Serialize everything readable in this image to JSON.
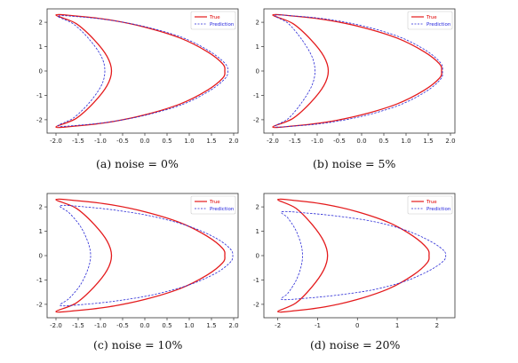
{
  "colors": {
    "true": "#e41a1c",
    "prediction": "#2b2bd6"
  },
  "chart_data": [
    {
      "type": "line",
      "caption": "(a) noise = 0%",
      "xlim": [
        -2.2,
        2.1
      ],
      "ylim": [
        -2.55,
        2.55
      ],
      "xticks": [
        "-2.0",
        "-1.5",
        "-1.0",
        "-0.5",
        "0.0",
        "0.5",
        "1.0",
        "1.5",
        "2.0"
      ],
      "xtick_values": [
        -2.0,
        -1.5,
        -1.0,
        -0.5,
        0.0,
        0.5,
        1.0,
        1.5,
        2.0
      ],
      "yticks": [
        "-2",
        "-1",
        "0",
        "1",
        "2"
      ],
      "ytick_values": [
        -2,
        -1,
        0,
        1,
        2
      ],
      "legend": "top-right",
      "grid": false,
      "series": [
        {
          "name": "True",
          "style": "solid",
          "x": [
            -2.0,
            -1.5,
            -0.8,
            0.0,
            0.8,
            1.4,
            1.75,
            1.8,
            1.75,
            1.4,
            0.8,
            0.0,
            -0.8,
            -1.5,
            -2.0,
            -1.55,
            -1.15,
            -0.85,
            -0.75,
            -0.85,
            -1.15,
            -1.55,
            -2.0
          ],
          "y": [
            2.3,
            2.25,
            2.1,
            1.8,
            1.35,
            0.8,
            0.3,
            0.0,
            -0.3,
            -0.8,
            -1.35,
            -1.8,
            -2.1,
            -2.25,
            -2.3,
            -1.95,
            -1.3,
            -0.6,
            0.0,
            0.6,
            1.3,
            1.95,
            2.3
          ]
        },
        {
          "name": "Prediction",
          "style": "dashed",
          "x": [
            -1.95,
            -1.45,
            -0.75,
            0.05,
            0.85,
            1.45,
            1.8,
            1.87,
            1.8,
            1.45,
            0.85,
            0.05,
            -0.75,
            -1.45,
            -1.95,
            -1.6,
            -1.25,
            -0.98,
            -0.9,
            -0.98,
            -1.25,
            -1.6,
            -1.95
          ],
          "y": [
            2.25,
            2.22,
            2.08,
            1.8,
            1.37,
            0.82,
            0.32,
            0.0,
            -0.32,
            -0.82,
            -1.37,
            -1.8,
            -2.08,
            -2.22,
            -2.25,
            -1.92,
            -1.3,
            -0.6,
            0.0,
            0.6,
            1.3,
            1.92,
            2.25
          ]
        }
      ]
    },
    {
      "type": "line",
      "caption": "(b) noise = 5%",
      "xlim": [
        -2.2,
        2.1
      ],
      "ylim": [
        -2.55,
        2.55
      ],
      "xticks": [
        "-2.0",
        "-1.5",
        "-1.0",
        "-0.5",
        "0.0",
        "0.5",
        "1.0",
        "1.5",
        "2.0"
      ],
      "xtick_values": [
        -2.0,
        -1.5,
        -1.0,
        -0.5,
        0.0,
        0.5,
        1.0,
        1.5,
        2.0
      ],
      "yticks": [
        "-2",
        "-1",
        "0",
        "1",
        "2"
      ],
      "ytick_values": [
        -2,
        -1,
        0,
        1,
        2
      ],
      "legend": "top-right",
      "grid": false,
      "series": [
        {
          "name": "True",
          "style": "solid",
          "x": [
            -2.0,
            -1.5,
            -0.8,
            0.0,
            0.8,
            1.4,
            1.75,
            1.8,
            1.75,
            1.4,
            0.8,
            0.0,
            -0.8,
            -1.5,
            -2.0,
            -1.55,
            -1.15,
            -0.85,
            -0.75,
            -0.85,
            -1.15,
            -1.55,
            -2.0
          ],
          "y": [
            2.3,
            2.25,
            2.1,
            1.8,
            1.35,
            0.8,
            0.3,
            0.0,
            -0.3,
            -0.8,
            -1.35,
            -1.8,
            -2.1,
            -2.25,
            -2.3,
            -1.95,
            -1.3,
            -0.6,
            0.0,
            0.6,
            1.3,
            1.95,
            2.3
          ]
        },
        {
          "name": "Prediction",
          "style": "dashed",
          "x": [
            -1.95,
            -1.45,
            -0.75,
            0.05,
            0.85,
            1.45,
            1.78,
            1.82,
            1.78,
            1.45,
            0.85,
            0.05,
            -0.75,
            -1.45,
            -1.95,
            -1.65,
            -1.35,
            -1.12,
            -1.05,
            -1.12,
            -1.35,
            -1.65,
            -1.95
          ],
          "y": [
            2.28,
            2.25,
            2.12,
            1.84,
            1.4,
            0.84,
            0.33,
            0.0,
            -0.33,
            -0.84,
            -1.4,
            -1.84,
            -2.12,
            -2.25,
            -2.28,
            -1.95,
            -1.3,
            -0.6,
            0.0,
            0.6,
            1.3,
            1.95,
            2.28
          ]
        }
      ]
    },
    {
      "type": "line",
      "caption": "(c) noise = 10%",
      "xlim": [
        -2.2,
        2.1
      ],
      "ylim": [
        -2.55,
        2.55
      ],
      "xticks": [
        "-2.0",
        "-1.5",
        "-1.0",
        "-0.5",
        "0.0",
        "0.5",
        "1.0",
        "1.5",
        "2.0"
      ],
      "xtick_values": [
        -2.0,
        -1.5,
        -1.0,
        -0.5,
        0.0,
        0.5,
        1.0,
        1.5,
        2.0
      ],
      "yticks": [
        "-2",
        "-1",
        "0",
        "1",
        "2"
      ],
      "ytick_values": [
        -2,
        -1,
        0,
        1,
        2
      ],
      "legend": "top-right",
      "grid": false,
      "series": [
        {
          "name": "True",
          "style": "solid",
          "x": [
            -2.0,
            -1.5,
            -0.8,
            0.0,
            0.8,
            1.4,
            1.75,
            1.8,
            1.75,
            1.4,
            0.8,
            0.0,
            -0.8,
            -1.5,
            -2.0,
            -1.55,
            -1.15,
            -0.85,
            -0.75,
            -0.85,
            -1.15,
            -1.55,
            -2.0
          ],
          "y": [
            2.3,
            2.25,
            2.1,
            1.8,
            1.35,
            0.8,
            0.3,
            0.0,
            -0.3,
            -0.8,
            -1.35,
            -1.8,
            -2.1,
            -2.25,
            -2.3,
            -1.95,
            -1.3,
            -0.6,
            0.0,
            0.6,
            1.3,
            1.95,
            2.3
          ]
        },
        {
          "name": "Prediction",
          "style": "dashed",
          "x": [
            -1.9,
            -1.35,
            -0.6,
            0.2,
            1.0,
            1.6,
            1.92,
            1.98,
            1.92,
            1.6,
            1.0,
            0.2,
            -0.6,
            -1.35,
            -1.9,
            -1.7,
            -1.45,
            -1.28,
            -1.22,
            -1.28,
            -1.45,
            -1.7,
            -1.9
          ],
          "y": [
            2.05,
            2.0,
            1.85,
            1.6,
            1.2,
            0.72,
            0.28,
            0.0,
            -0.28,
            -0.72,
            -1.2,
            -1.6,
            -1.85,
            -2.0,
            -2.05,
            -1.75,
            -1.2,
            -0.55,
            0.0,
            0.55,
            1.2,
            1.75,
            2.05
          ]
        }
      ]
    },
    {
      "type": "line",
      "caption": "(d) noise = 20%",
      "xlim": [
        -2.35,
        2.45
      ],
      "ylim": [
        -2.55,
        2.55
      ],
      "xticks": [
        "-2",
        "-1",
        "0",
        "1",
        "2"
      ],
      "xtick_values": [
        -2,
        -1,
        0,
        1,
        2
      ],
      "yticks": [
        "-2",
        "-1",
        "0",
        "1",
        "2"
      ],
      "ytick_values": [
        -2,
        -1,
        0,
        1,
        2
      ],
      "legend": "top-right",
      "grid": false,
      "series": [
        {
          "name": "True",
          "style": "solid",
          "x": [
            -2.0,
            -1.5,
            -0.8,
            0.0,
            0.8,
            1.4,
            1.75,
            1.8,
            1.75,
            1.4,
            0.8,
            0.0,
            -0.8,
            -1.5,
            -2.0,
            -1.55,
            -1.15,
            -0.85,
            -0.75,
            -0.85,
            -1.15,
            -1.55,
            -2.0
          ],
          "y": [
            2.3,
            2.25,
            2.1,
            1.8,
            1.35,
            0.8,
            0.3,
            0.0,
            -0.3,
            -0.8,
            -1.35,
            -1.8,
            -2.1,
            -2.25,
            -2.3,
            -1.95,
            -1.3,
            -0.6,
            0.0,
            0.6,
            1.3,
            1.95,
            2.3
          ]
        },
        {
          "name": "Prediction",
          "style": "dashed",
          "x": [
            -1.9,
            -1.3,
            -0.5,
            0.4,
            1.2,
            1.8,
            2.15,
            2.22,
            2.15,
            1.8,
            1.2,
            0.4,
            -0.5,
            -1.3,
            -1.9,
            -1.75,
            -1.55,
            -1.42,
            -1.38,
            -1.42,
            -1.55,
            -1.75,
            -1.9
          ],
          "y": [
            1.8,
            1.75,
            1.62,
            1.4,
            1.05,
            0.62,
            0.24,
            0.0,
            -0.24,
            -0.62,
            -1.05,
            -1.4,
            -1.62,
            -1.75,
            -1.8,
            -1.55,
            -1.05,
            -0.48,
            0.0,
            0.48,
            1.05,
            1.55,
            1.8
          ]
        }
      ]
    }
  ]
}
